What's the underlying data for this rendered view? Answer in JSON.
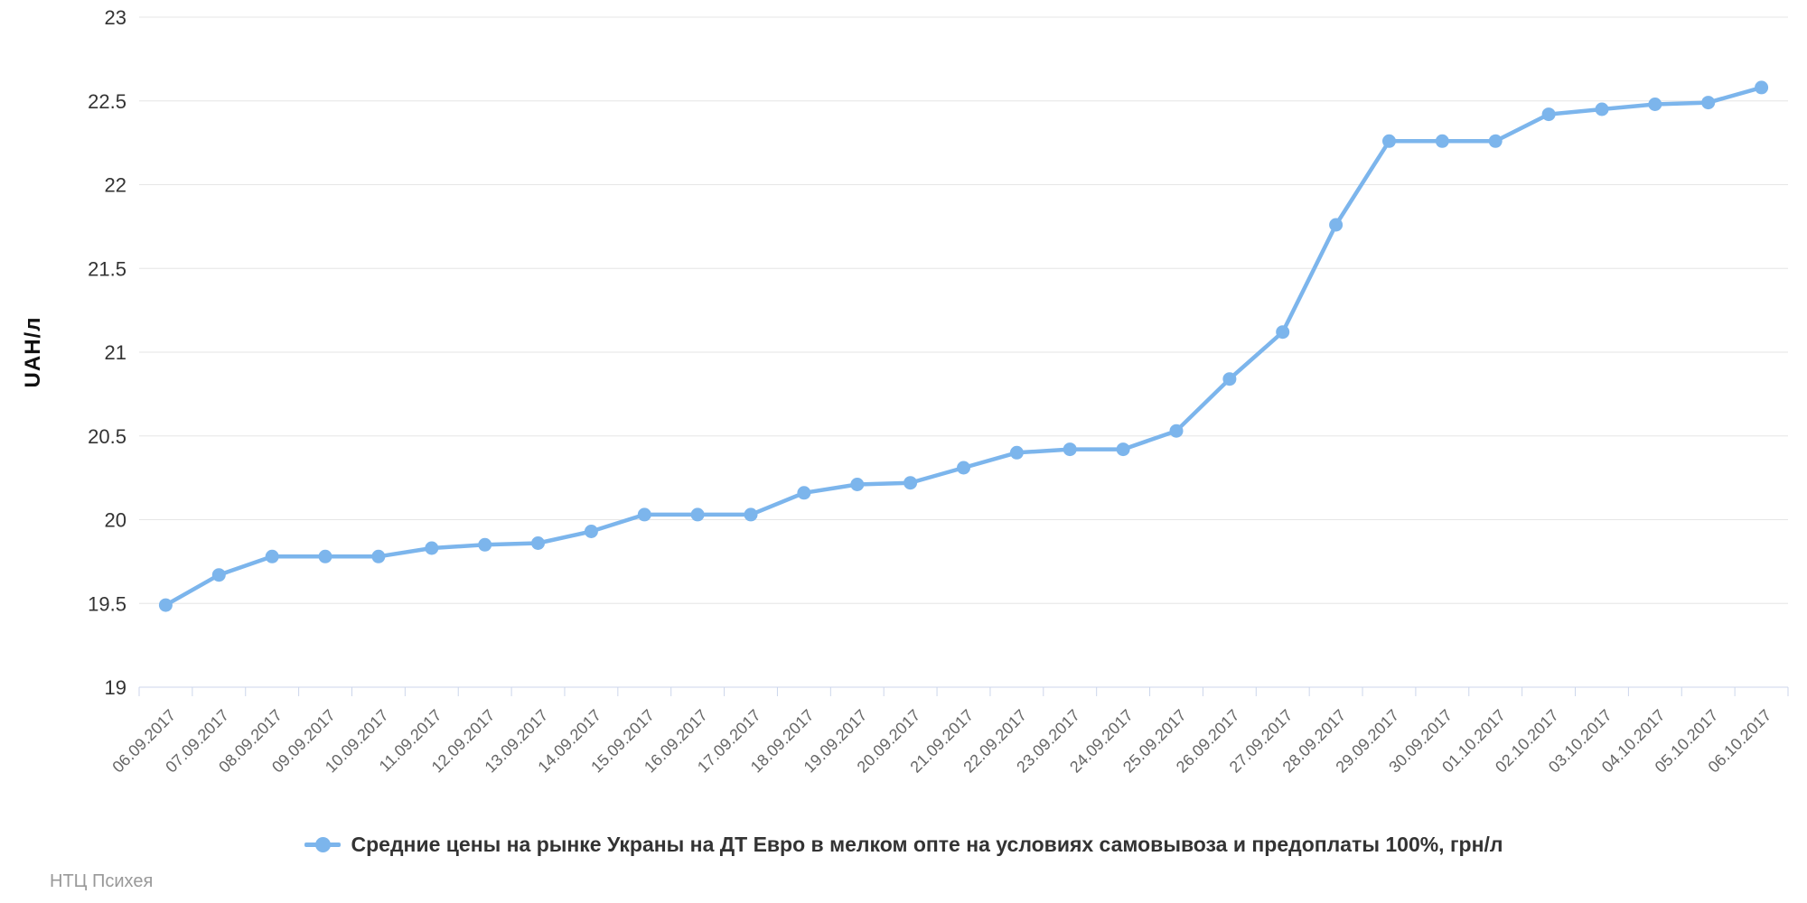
{
  "chart_data": {
    "type": "line",
    "title": "",
    "x": [
      "06.09.2017",
      "07.09.2017",
      "08.09.2017",
      "09.09.2017",
      "10.09.2017",
      "11.09.2017",
      "12.09.2017",
      "13.09.2017",
      "14.09.2017",
      "15.09.2017",
      "16.09.2017",
      "17.09.2017",
      "18.09.2017",
      "19.09.2017",
      "20.09.2017",
      "21.09.2017",
      "22.09.2017",
      "23.09.2017",
      "24.09.2017",
      "25.09.2017",
      "26.09.2017",
      "27.09.2017",
      "28.09.2017",
      "29.09.2017",
      "30.09.2017",
      "01.10.2017",
      "02.10.2017",
      "03.10.2017",
      "04.10.2017",
      "05.10.2017",
      "06.10.2017"
    ],
    "series": [
      {
        "name": "Средние цены на рынке Украны на ДТ Евро в мелком опте на условиях самовывоза и предоплаты 100%, грн/л",
        "values": [
          19.49,
          19.67,
          19.78,
          19.78,
          19.78,
          19.83,
          19.85,
          19.86,
          19.93,
          20.03,
          20.03,
          20.03,
          20.16,
          20.21,
          20.22,
          20.31,
          20.4,
          20.42,
          20.42,
          20.53,
          20.84,
          21.12,
          21.76,
          22.26,
          22.26,
          22.26,
          22.42,
          22.45,
          22.48,
          22.49,
          22.58
        ]
      }
    ],
    "xlabel": "",
    "ylabel": "UAH/л",
    "ylim": [
      19,
      23
    ],
    "ytick_step": 0.5,
    "yticks": [
      "19",
      "19.5",
      "20",
      "20.5",
      "21",
      "21.5",
      "22",
      "22.5",
      "23"
    ],
    "grid": true,
    "legend_position": "bottom-center",
    "marker": "circle"
  },
  "branding": {
    "text": "НТЦ Психея"
  },
  "colors": {
    "accent": "#7cb5ec",
    "gridline": "#e6e6e6",
    "axis_line": "#ccd6eb",
    "x_label": "#666666",
    "y_label": "#333333",
    "legend_text": "#333333",
    "footer_text": "#999999",
    "background": "#ffffff"
  }
}
